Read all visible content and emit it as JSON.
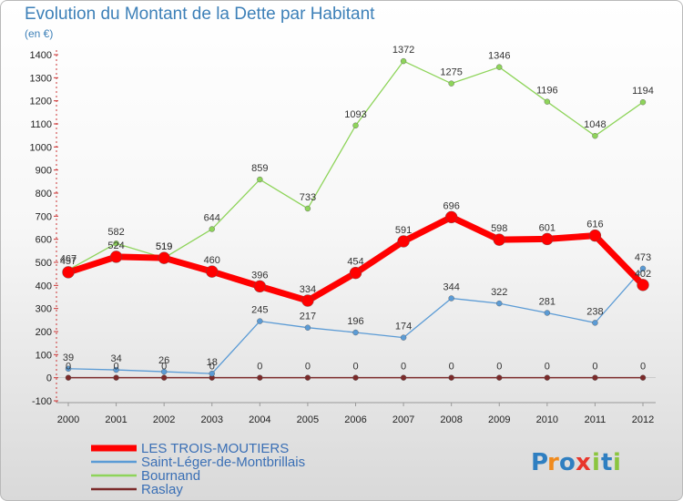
{
  "chart_data": {
    "type": "line",
    "title": "Evolution du Montant de la Dette par Habitant",
    "subtitle": "(en €)",
    "x": [
      "2000",
      "2001",
      "2002",
      "2003",
      "2004",
      "2005",
      "2006",
      "2007",
      "2008",
      "2009",
      "2010",
      "2011",
      "2012"
    ],
    "ylim": [
      -100,
      1400
    ],
    "yticks": [
      -100,
      0,
      100,
      200,
      300,
      400,
      500,
      600,
      700,
      800,
      900,
      1000,
      1100,
      1200,
      1300,
      1400
    ],
    "grid": false,
    "legend_position": "bottom-left",
    "series": [
      {
        "name": "Raslay",
        "color": "#7b2a2a",
        "values": [
          0,
          0,
          0,
          0,
          0,
          0,
          0,
          0,
          0,
          0,
          0,
          0,
          0
        ]
      },
      {
        "name": "Saint-Léger-de-Montbrillais",
        "color": "#5b9bd5",
        "values": [
          39,
          34,
          26,
          18,
          245,
          217,
          196,
          174,
          344,
          322,
          281,
          238,
          473
        ]
      },
      {
        "name": "Bournand",
        "color": "#8ed45a",
        "values": [
          467,
          582,
          519,
          644,
          859,
          733,
          1093,
          1372,
          1275,
          1346,
          1196,
          1048,
          1194
        ]
      },
      {
        "name": "LES TROIS-MOUTIERS",
        "color": "#ff0000",
        "values": [
          457,
          524,
          519,
          460,
          396,
          334,
          454,
          591,
          696,
          598,
          601,
          616,
          402
        ]
      }
    ],
    "data_labels": [
      [
        "0",
        "0",
        "0",
        "0",
        "0",
        "0",
        "0",
        "0",
        "0",
        "0",
        "0",
        "0",
        "0"
      ],
      [
        "39",
        "34",
        "26",
        "18",
        "245",
        "217",
        "196",
        "174",
        "344",
        "322",
        "281",
        "238",
        "473"
      ],
      [
        "467",
        "582",
        "519",
        "644",
        "859",
        "733",
        "1093",
        "1372",
        "1275",
        "1346",
        "1196",
        "1048",
        "1194"
      ],
      [
        "457",
        "524",
        "519",
        "460",
        "396",
        "334",
        "454",
        "591",
        "696",
        "598",
        "601",
        "616",
        "402"
      ]
    ],
    "legend_order": [
      "LES TROIS-MOUTIERS",
      "Saint-Léger-de-Montbrillais",
      "Bournand",
      "Raslay"
    ]
  },
  "branding": {
    "logo_text": "Proxiti",
    "logo_letters": [
      "P",
      "r",
      "o",
      "x",
      "i",
      "t",
      "i"
    ],
    "logo_colors": [
      "#2f7fc1",
      "#f08a1c",
      "#2f7fc1",
      "#e8362c",
      "#8bc53f",
      "#2f7fc1",
      "#8bc53f"
    ]
  }
}
